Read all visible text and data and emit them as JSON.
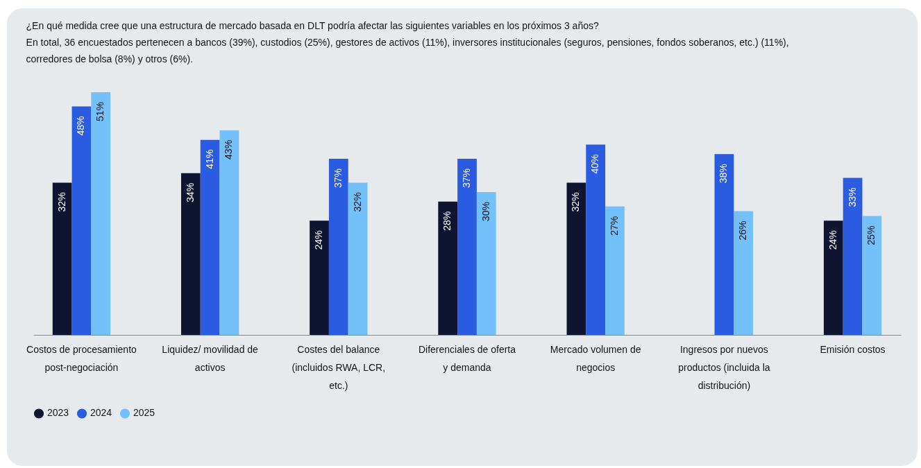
{
  "chart_data": {
    "type": "bar",
    "title": "¿En qué medida cree que una estructura de mercado basada en DLT podría afectar las siguientes variables en los próximos 3 años?",
    "subtitle": "En total, 36 encuestados pertenecen a bancos (39%), custodios (25%), gestores de activos (11%), inversores institucionales (seguros, pensiones, fondos soberanos, etc.) (11%), corredores de bolsa (8%) y otros (6%).",
    "categories": [
      "Costos de procesamiento post-negociación",
      "Liquidez/ movilidad de activos",
      "Costes del balance (incluidos RWA, LCR, etc.)",
      "Diferenciales de oferta y demanda",
      "Mercado volumen de negocios",
      "Ingresos por nuevos productos (incluida la distribución)",
      "Emisión costos"
    ],
    "series": [
      {
        "name": "2023",
        "color": "#0f1530",
        "values": [
          32,
          34,
          24,
          28,
          32,
          null,
          24
        ],
        "value_labels": [
          "32%",
          "34%",
          "24%",
          "28%",
          "32%",
          null,
          "24%"
        ]
      },
      {
        "name": "2024",
        "color": "#2a5be0",
        "values": [
          48,
          41,
          37,
          37,
          40,
          38,
          33
        ],
        "value_labels": [
          "48%",
          "41%",
          "37%",
          "37%",
          "40%",
          "38%",
          "33%"
        ]
      },
      {
        "name": "2025",
        "color": "#74c0fb",
        "values": [
          51,
          43,
          32,
          30,
          27,
          26,
          25
        ],
        "value_labels": [
          "51%",
          "43%",
          "32%",
          "30%",
          "27%",
          "26%",
          "25%"
        ]
      }
    ],
    "legend": "bottom left",
    "grid": false
  }
}
